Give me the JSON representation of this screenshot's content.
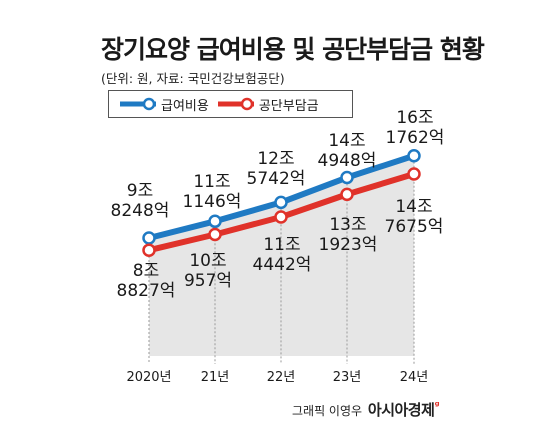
{
  "header": {
    "title": "장기요양 급여비용 및 공단부담금 현황",
    "subtitle": "(단위: 원, 자료: 국민건강보험공단)"
  },
  "credit": {
    "text": "그래픽 이영우",
    "brand": "아시아경제"
  },
  "chart_data": {
    "type": "line",
    "title": "장기요양 급여비용 및 공단부담금 현황",
    "unit": "원",
    "categories": [
      "2020년",
      "21년",
      "22년",
      "23년",
      "24년"
    ],
    "series": [
      {
        "name": "급여비용",
        "color": "#1f7ac3",
        "values": [
          9.8248,
          11.1146,
          12.5742,
          14.4948,
          16.1762
        ],
        "labels": [
          [
            "9조",
            "8248억"
          ],
          [
            "11조",
            "1146억"
          ],
          [
            "12조",
            "5742억"
          ],
          [
            "14조",
            "4948억"
          ],
          [
            "16조",
            "1762억"
          ]
        ]
      },
      {
        "name": "공단부담금",
        "color": "#e0322a",
        "values": [
          8.8827,
          10.0957,
          11.4442,
          13.1923,
          14.7675
        ],
        "labels": [
          [
            "8조",
            "8827억"
          ],
          [
            "10조",
            "957억"
          ],
          [
            "11조",
            "4442억"
          ],
          [
            "13조",
            "1923억"
          ],
          [
            "14조",
            "7675억"
          ]
        ]
      }
    ],
    "legend_position": "top-left",
    "grid": false
  }
}
